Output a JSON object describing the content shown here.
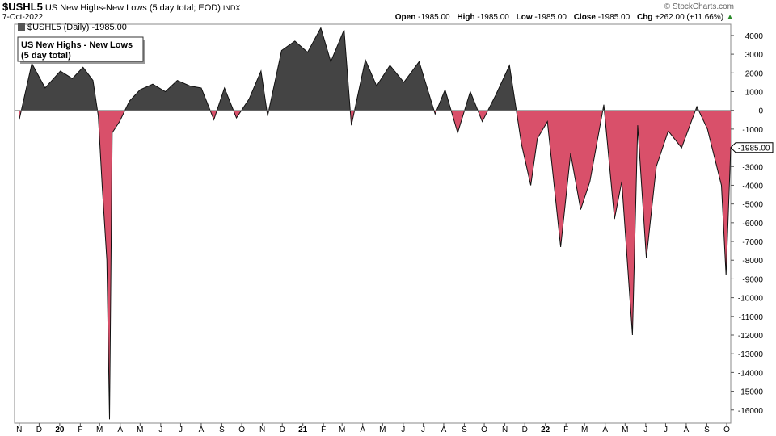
{
  "header": {
    "symbol": "$USHL5",
    "description": "US New Highs-New Lows (5 day total; EOD)",
    "exchange": "INDX",
    "date": "7-Oct-2022",
    "brand": "© StockCharts.com",
    "open_label": "Open",
    "open": "-1985.00",
    "high_label": "High",
    "high": "-1985.00",
    "low_label": "Low",
    "low": "-1985.00",
    "close_label": "Close",
    "close": "-1985.00",
    "chg_label": "Chg",
    "chg": "+262.00 (+11.66%)",
    "chg_arrow": "▲"
  },
  "legend": {
    "text": "$USHL5 (Daily) -1985.00"
  },
  "annotation": {
    "line1": "US New Highs - New Lows",
    "line2": "(5 day total)"
  },
  "last_value_label": "-1985.00",
  "chart_data": {
    "type": "area",
    "series": [
      {
        "name": "$USHL5 (Daily)"
      }
    ],
    "x": [
      "2019-11-01",
      "2019-11-20",
      "2019-12-10",
      "2020-01-02",
      "2020-01-20",
      "2020-02-05",
      "2020-02-20",
      "2020-02-28",
      "2020-03-05",
      "2020-03-12",
      "2020-03-16",
      "2020-03-20",
      "2020-03-31",
      "2020-04-15",
      "2020-05-01",
      "2020-05-20",
      "2020-06-08",
      "2020-06-26",
      "2020-07-15",
      "2020-08-01",
      "2020-08-20",
      "2020-09-05",
      "2020-09-23",
      "2020-10-12",
      "2020-10-30",
      "2020-11-09",
      "2020-11-30",
      "2020-12-20",
      "2021-01-08",
      "2021-01-28",
      "2021-02-12",
      "2021-03-04",
      "2021-03-15",
      "2021-04-05",
      "2021-04-22",
      "2021-05-12",
      "2021-06-02",
      "2021-06-25",
      "2021-07-19",
      "2021-08-03",
      "2021-08-22",
      "2021-09-10",
      "2021-09-28",
      "2021-10-18",
      "2021-11-08",
      "2021-11-26",
      "2021-12-10",
      "2021-12-20",
      "2022-01-04",
      "2022-01-24",
      "2022-02-08",
      "2022-02-23",
      "2022-03-09",
      "2022-03-30",
      "2022-04-15",
      "2022-04-26",
      "2022-05-12",
      "2022-05-20",
      "2022-06-02",
      "2022-06-17",
      "2022-07-05",
      "2022-07-25",
      "2022-08-17",
      "2022-09-02",
      "2022-09-23",
      "2022-09-30",
      "2022-10-07"
    ],
    "y": [
      -500,
      2500,
      1200,
      2100,
      1700,
      2300,
      1600,
      -300,
      -4100,
      -8000,
      -16500,
      -1200,
      -600,
      500,
      1100,
      1400,
      1000,
      1600,
      1300,
      1200,
      -500,
      1200,
      -400,
      600,
      2100,
      -300,
      3200,
      3700,
      3100,
      4400,
      2600,
      4300,
      -800,
      2700,
      1300,
      2400,
      1500,
      2600,
      -200,
      1100,
      -1200,
      1000,
      -600,
      800,
      2400,
      -1800,
      -4000,
      -1500,
      -600,
      -7300,
      -2300,
      -5300,
      -3800,
      300,
      -5800,
      -3800,
      -12000,
      -800,
      -7900,
      -3000,
      -1100,
      -2000,
      200,
      -1000,
      -4000,
      -8800,
      -1985
    ],
    "ylim": [
      -16700,
      4600
    ],
    "y_ticks": [
      4000,
      3000,
      2000,
      1000,
      0,
      -1000,
      -2000,
      -3000,
      -4000,
      -5000,
      -6000,
      -7000,
      -8000,
      -9000,
      -10000,
      -11000,
      -12000,
      -13000,
      -14000,
      -15000,
      -16000
    ],
    "x_month_labels": [
      {
        "label": "N",
        "date": "2019-11-01"
      },
      {
        "label": "D",
        "date": "2019-12-01"
      },
      {
        "label": "20",
        "date": "2020-01-01"
      },
      {
        "label": "F",
        "date": "2020-02-01"
      },
      {
        "label": "M",
        "date": "2020-03-01"
      },
      {
        "label": "A",
        "date": "2020-04-01"
      },
      {
        "label": "M",
        "date": "2020-05-01"
      },
      {
        "label": "J",
        "date": "2020-06-01"
      },
      {
        "label": "J",
        "date": "2020-07-01"
      },
      {
        "label": "A",
        "date": "2020-08-01"
      },
      {
        "label": "S",
        "date": "2020-09-01"
      },
      {
        "label": "O",
        "date": "2020-10-01"
      },
      {
        "label": "N",
        "date": "2020-11-01"
      },
      {
        "label": "D",
        "date": "2020-12-01"
      },
      {
        "label": "21",
        "date": "2021-01-01"
      },
      {
        "label": "F",
        "date": "2021-02-01"
      },
      {
        "label": "M",
        "date": "2021-03-01"
      },
      {
        "label": "A",
        "date": "2021-04-01"
      },
      {
        "label": "M",
        "date": "2021-05-01"
      },
      {
        "label": "J",
        "date": "2021-06-01"
      },
      {
        "label": "J",
        "date": "2021-07-01"
      },
      {
        "label": "A",
        "date": "2021-08-01"
      },
      {
        "label": "S",
        "date": "2021-09-01"
      },
      {
        "label": "O",
        "date": "2021-10-01"
      },
      {
        "label": "N",
        "date": "2021-11-01"
      },
      {
        "label": "D",
        "date": "2021-12-01"
      },
      {
        "label": "22",
        "date": "2022-01-01"
      },
      {
        "label": "F",
        "date": "2022-02-01"
      },
      {
        "label": "M",
        "date": "2022-03-01"
      },
      {
        "label": "A",
        "date": "2022-04-01"
      },
      {
        "label": "M",
        "date": "2022-05-01"
      },
      {
        "label": "J",
        "date": "2022-06-01"
      },
      {
        "label": "J",
        "date": "2022-07-01"
      },
      {
        "label": "A",
        "date": "2022-08-01"
      },
      {
        "label": "S",
        "date": "2022-09-01"
      },
      {
        "label": "O",
        "date": "2022-10-01"
      }
    ],
    "x_start": "2019-10-25",
    "x_end": "2022-10-07",
    "positive_color": "#444444",
    "negative_color": "#d9506a",
    "grid": false,
    "axis_side": "right"
  }
}
